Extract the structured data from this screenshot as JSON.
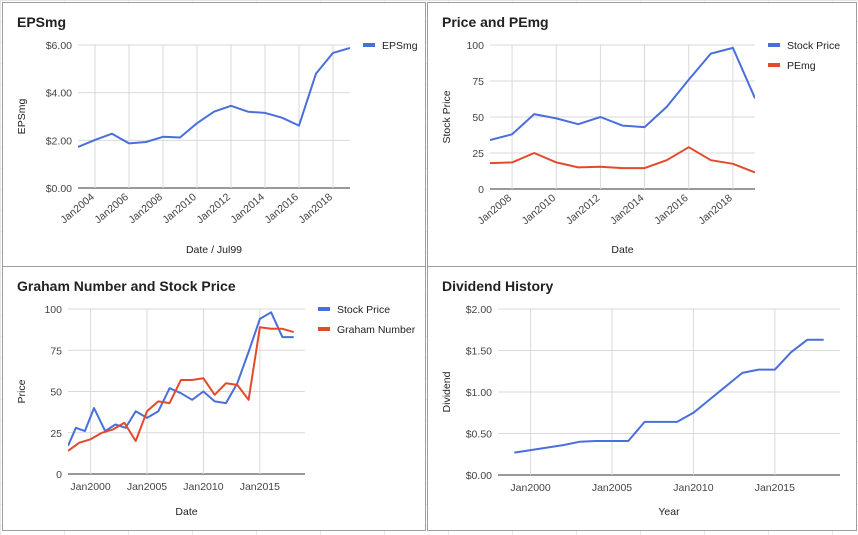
{
  "chart_data": [
    {
      "type": "line",
      "title": "EPSmg",
      "xlabel": "Date / Jul99",
      "ylabel": "EPSmg",
      "legend": "right",
      "grid": true,
      "xlim": [
        2003,
        2019
      ],
      "ylim": [
        0,
        6
      ],
      "y_ticks": [
        "$0.00",
        "$2.00",
        "$4.00",
        "$6.00"
      ],
      "y_tick_values": [
        0,
        2,
        4,
        6
      ],
      "x_ticks": [
        "Jan2004",
        "Jan2006",
        "Jan2008",
        "Jan2010",
        "Jan2012",
        "Jan2014",
        "Jan2016",
        "Jan2018"
      ],
      "x_tick_values": [
        2004,
        2006,
        2008,
        2010,
        2012,
        2014,
        2016,
        2018
      ],
      "x_tick_rotate": true,
      "series": [
        {
          "name": "EPSmg",
          "color": "#4a6fdc",
          "x": [
            2003,
            2004,
            2005,
            2006,
            2007,
            2008,
            2009,
            2010,
            2011,
            2012,
            2013,
            2014,
            2015,
            2016,
            2017,
            2018,
            2019
          ],
          "values": [
            1.72,
            2.02,
            2.28,
            1.87,
            1.93,
            2.15,
            2.12,
            2.72,
            3.2,
            3.45,
            3.2,
            3.15,
            2.95,
            2.62,
            4.8,
            5.67,
            5.88
          ]
        }
      ]
    },
    {
      "type": "line",
      "title": "Price and PEmg",
      "xlabel": "Date",
      "ylabel": "Stock Price",
      "legend": "right",
      "grid": true,
      "xlim": [
        2007,
        2019
      ],
      "ylim": [
        0,
        100
      ],
      "y_ticks": [
        "0",
        "25",
        "50",
        "75",
        "100"
      ],
      "y_tick_values": [
        0,
        25,
        50,
        75,
        100
      ],
      "x_ticks": [
        "Jan2008",
        "Jan2010",
        "Jan2012",
        "Jan2014",
        "Jan2016",
        "Jan2018"
      ],
      "x_tick_values": [
        2008,
        2010,
        2012,
        2014,
        2016,
        2018
      ],
      "x_tick_rotate": true,
      "series": [
        {
          "name": "Stock Price",
          "color": "#4a6fdc",
          "x": [
            2007,
            2008,
            2009,
            2010,
            2011,
            2012,
            2013,
            2014,
            2015,
            2016,
            2017,
            2018,
            2019
          ],
          "values": [
            34,
            38,
            52,
            49,
            45,
            50,
            44,
            43,
            57,
            76,
            94,
            98,
            63
          ]
        },
        {
          "name": "PEmg",
          "color": "#e34a2c",
          "x": [
            2007,
            2008,
            2009,
            2010,
            2011,
            2012,
            2013,
            2014,
            2015,
            2016,
            2017,
            2018,
            2019
          ],
          "values": [
            18,
            18.5,
            25,
            18.5,
            15,
            15.5,
            14.5,
            14.5,
            20,
            29,
            20,
            17.5,
            11.5
          ]
        }
      ]
    },
    {
      "type": "line",
      "title": "Graham Number and Stock Price",
      "xlabel": "Date",
      "ylabel": "Price",
      "legend": "right",
      "grid": true,
      "xlim": [
        1998,
        2019
      ],
      "ylim": [
        0,
        100
      ],
      "y_ticks": [
        "0",
        "25",
        "50",
        "75",
        "100"
      ],
      "y_tick_values": [
        0,
        25,
        50,
        75,
        100
      ],
      "x_ticks": [
        "Jan2000",
        "Jan2005",
        "Jan2010",
        "Jan2015"
      ],
      "x_tick_values": [
        2000,
        2005,
        2010,
        2015
      ],
      "x_tick_rotate": false,
      "series": [
        {
          "name": "Stock Price",
          "color": "#4a6fdc",
          "x": [
            1998,
            1998.7,
            1999.5,
            2000.3,
            2001.3,
            2002.2,
            2003.1,
            2004,
            2005,
            2006,
            2007,
            2008,
            2009,
            2010,
            2011,
            2012,
            2013,
            2014,
            2015,
            2016,
            2017,
            2018
          ],
          "values": [
            17,
            28,
            26,
            40,
            26,
            30,
            28,
            38,
            34,
            38,
            52,
            49,
            45,
            50,
            44,
            43,
            55,
            74,
            94,
            98,
            83,
            83
          ]
        },
        {
          "name": "Graham Number",
          "color": "#e34a2c",
          "x": [
            1998,
            1999,
            2000,
            2001,
            2002,
            2003,
            2004,
            2005,
            2006,
            2007,
            2008,
            2009,
            2010,
            2011,
            2012,
            2013,
            2014,
            2015,
            2016,
            2017,
            2018
          ],
          "values": [
            14,
            19,
            21,
            25,
            27,
            31,
            20,
            38,
            44,
            43,
            57,
            57,
            58,
            48,
            55,
            54,
            45,
            89,
            88,
            88,
            86
          ]
        }
      ]
    },
    {
      "type": "line",
      "title": "Dividend History",
      "xlabel": "Year",
      "ylabel": "Dividend",
      "legend": "none",
      "grid": true,
      "xlim": [
        1998,
        2019
      ],
      "ylim": [
        0,
        2
      ],
      "y_ticks": [
        "$0.00",
        "$0.50",
        "$1.00",
        "$1.50",
        "$2.00"
      ],
      "y_tick_values": [
        0,
        0.5,
        1,
        1.5,
        2
      ],
      "x_ticks": [
        "Jan2000",
        "Jan2005",
        "Jan2010",
        "Jan2015"
      ],
      "x_tick_values": [
        2000,
        2005,
        2010,
        2015
      ],
      "x_tick_rotate": false,
      "series": [
        {
          "name": "",
          "color": "#4a6fdc",
          "x": [
            1999,
            2000,
            2001,
            2002,
            2003,
            2004,
            2005,
            2006,
            2007,
            2008,
            2009,
            2010,
            2011,
            2012,
            2013,
            2014,
            2015,
            2016,
            2017,
            2018
          ],
          "values": [
            0.27,
            0.3,
            0.33,
            0.36,
            0.4,
            0.41,
            0.41,
            0.41,
            0.64,
            0.64,
            0.64,
            0.75,
            0.91,
            1.07,
            1.23,
            1.27,
            1.27,
            1.48,
            1.63,
            1.63
          ]
        }
      ]
    }
  ]
}
